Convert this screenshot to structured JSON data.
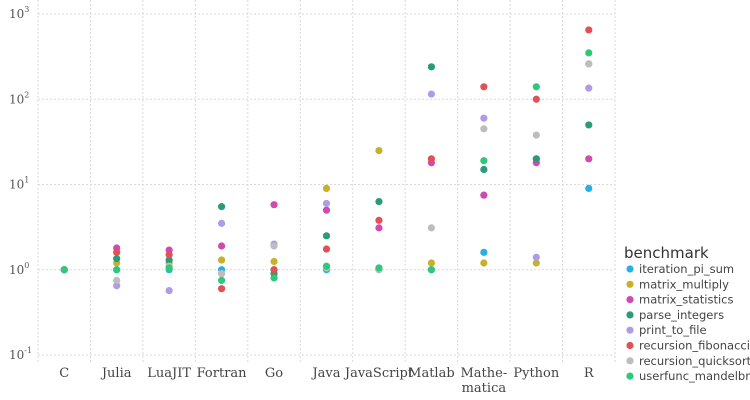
{
  "chart_data": {
    "type": "scatter",
    "title": "",
    "xlabel": "",
    "ylabel": "",
    "y_scale": "log",
    "ylim": [
      0.1,
      1000
    ],
    "y_ticks": [
      {
        "value": 0.1,
        "base": "10",
        "exp": "-1"
      },
      {
        "value": 1,
        "base": "10",
        "exp": "0"
      },
      {
        "value": 10,
        "base": "10",
        "exp": "1"
      },
      {
        "value": 100,
        "base": "10",
        "exp": "2"
      },
      {
        "value": 1000,
        "base": "10",
        "exp": "3"
      }
    ],
    "grid": true,
    "legend_position": "right",
    "legend_title": "benchmark",
    "categories": [
      {
        "name": "C",
        "lines": [
          "C"
        ]
      },
      {
        "name": "Julia",
        "lines": [
          "Julia"
        ]
      },
      {
        "name": "LuaJIT",
        "lines": [
          "LuaJIT"
        ]
      },
      {
        "name": "Fortran",
        "lines": [
          "Fortran"
        ]
      },
      {
        "name": "Go",
        "lines": [
          "Go"
        ]
      },
      {
        "name": "Java",
        "lines": [
          "Java"
        ]
      },
      {
        "name": "JavaScript",
        "lines": [
          "JavaScript"
        ]
      },
      {
        "name": "Matlab",
        "lines": [
          "Matlab"
        ]
      },
      {
        "name": "Mathematica",
        "lines": [
          "Mathe-",
          "matica"
        ]
      },
      {
        "name": "Python",
        "lines": [
          "Python"
        ]
      },
      {
        "name": "R",
        "lines": [
          "R"
        ]
      }
    ],
    "series": [
      {
        "name": "iteration_pi_sum",
        "color": "#2ab0e0",
        "values": [
          1,
          1,
          1,
          1,
          1,
          1,
          1,
          1,
          1.6,
          20,
          9
        ]
      },
      {
        "name": "matrix_multiply",
        "color": "#c8b02a",
        "values": [
          1,
          1.2,
          1.2,
          1.3,
          1.25,
          9,
          25,
          1.2,
          1.2,
          1.2,
          260
        ]
      },
      {
        "name": "matrix_statistics",
        "color": "#d04ab0",
        "values": [
          1,
          1.8,
          1.7,
          1.9,
          5.8,
          5,
          3.1,
          18,
          7.5,
          18,
          20
        ]
      },
      {
        "name": "parse_integers",
        "color": "#2a9a78",
        "values": [
          1,
          1.35,
          1.3,
          5.5,
          0.9,
          2.5,
          6.3,
          240,
          15,
          20,
          50
        ]
      },
      {
        "name": "print_to_file",
        "color": "#b09be6",
        "values": [
          1,
          0.65,
          0.57,
          3.5,
          2,
          6,
          1.05,
          115,
          60,
          1.4,
          135
        ]
      },
      {
        "name": "recursion_fibonacci",
        "color": "#e05055",
        "values": [
          1,
          1.6,
          1.5,
          0.6,
          1,
          1.75,
          3.8,
          20,
          140,
          100,
          650
        ]
      },
      {
        "name": "recursion_quicksort",
        "color": "#bdbdbd",
        "values": [
          1,
          0.75,
          1.1,
          0.9,
          1.9,
          1.05,
          1,
          3.1,
          45,
          38,
          260
        ]
      },
      {
        "name": "userfunc_mandelbrot",
        "color": "#2ec87a",
        "values": [
          1,
          1,
          1.05,
          0.75,
          0.8,
          1.1,
          1.05,
          1,
          19,
          140,
          350
        ]
      }
    ]
  }
}
